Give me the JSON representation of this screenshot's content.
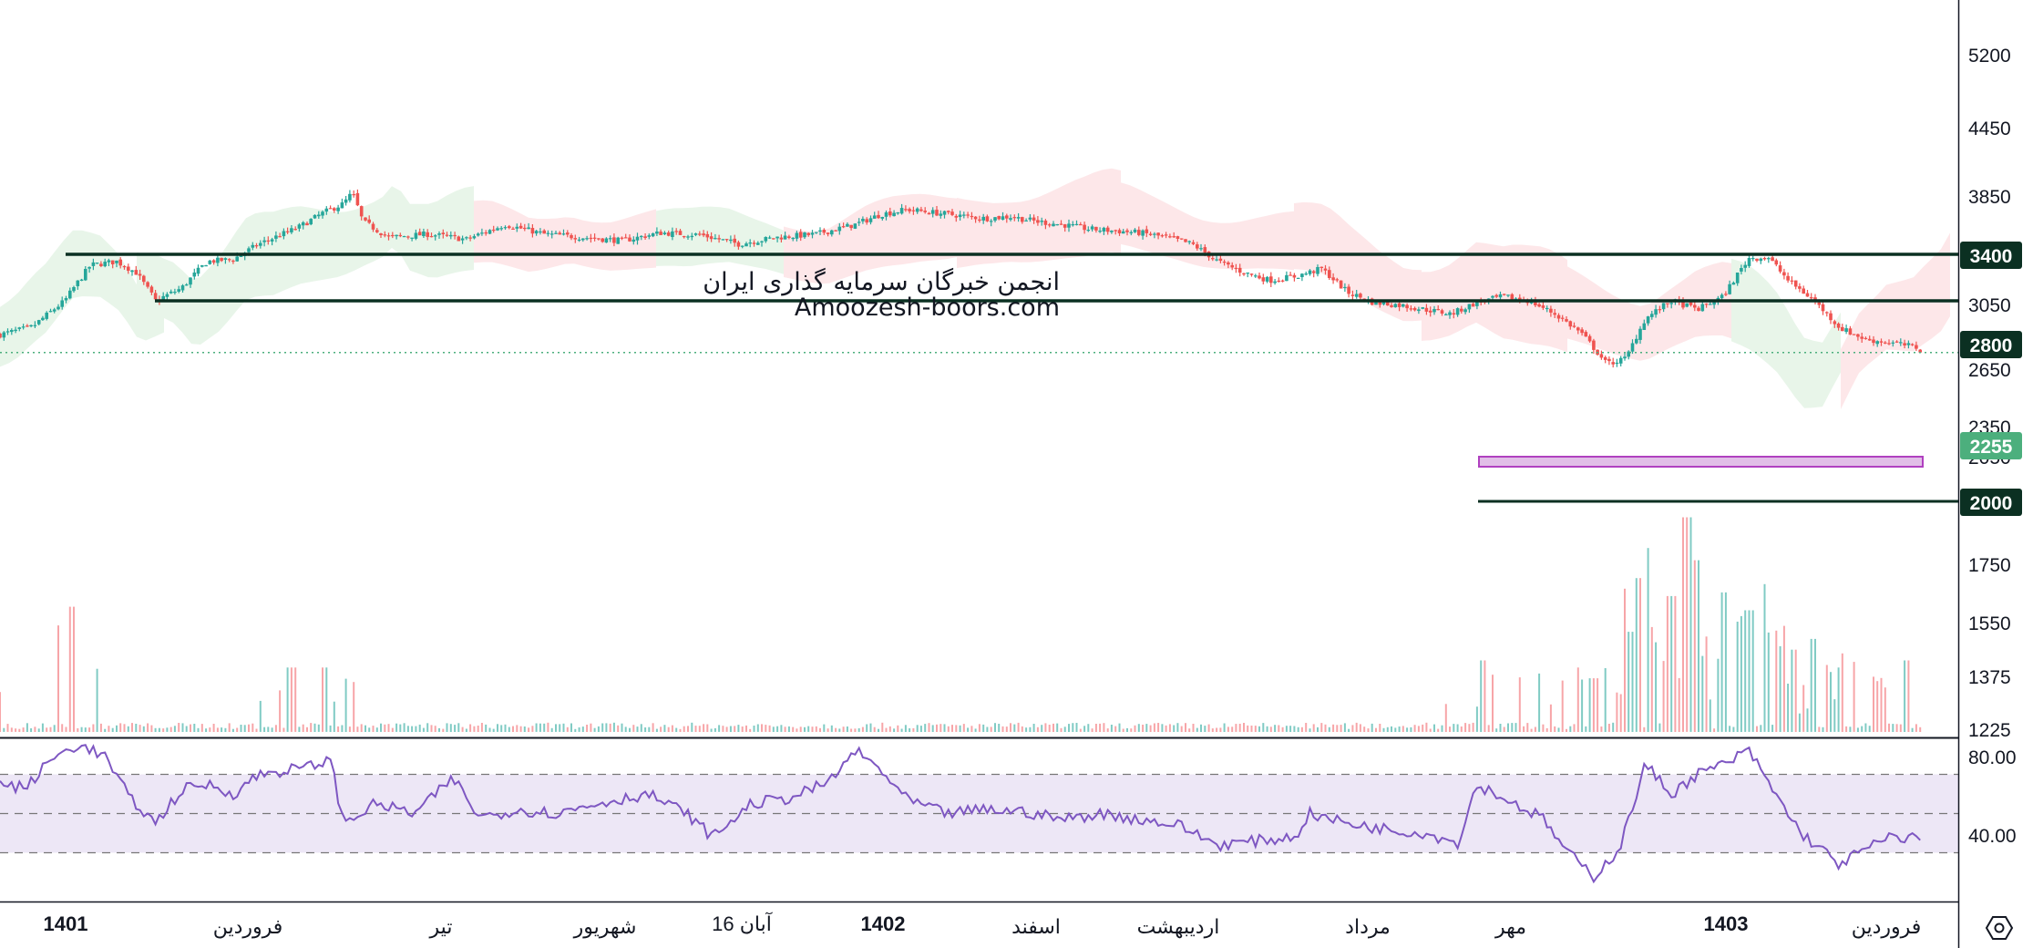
{
  "watermark": {
    "line1": "انجمن خبرگان سرمایه گذاری ایران",
    "line2": "Amoozesh-boors.com"
  },
  "price_axis": {
    "ticks": [
      "5200",
      "4450",
      "3850",
      "3400",
      "3050",
      "2800",
      "2650",
      "2350",
      "2255",
      "2050",
      "2000"
    ]
  },
  "volume_axis": {
    "ticks": [
      "1750",
      "1550",
      "1375",
      "1225"
    ]
  },
  "rsi_axis": {
    "ticks": [
      "80.00",
      "40.00"
    ]
  },
  "horizontal_levels": [
    {
      "value": 3400,
      "label": "3400",
      "color": "#0b3022"
    },
    {
      "value": 2800,
      "label": "2800",
      "color": "#0b3022"
    },
    {
      "value": 2000,
      "label": "2000",
      "color": "#0b3022"
    }
  ],
  "last_price": {
    "value": 2255,
    "label": "2255",
    "color": "#4caf7d"
  },
  "support_zone": {
    "from": 2185,
    "to": 2235,
    "color": "#e1bee7"
  },
  "time_axis": {
    "labels": [
      {
        "text": "1401",
        "bold": true
      },
      {
        "text": "فروردین",
        "bold": false
      },
      {
        "text": "تیر",
        "bold": false
      },
      {
        "text": "شهریور",
        "bold": false
      },
      {
        "text": "16 آبان",
        "bold": false
      },
      {
        "text": "1402",
        "bold": true
      },
      {
        "text": "اسفند",
        "bold": false
      },
      {
        "text": "اردیبهشت",
        "bold": false
      },
      {
        "text": "مرداد",
        "bold": false
      },
      {
        "text": "مهر",
        "bold": false
      },
      {
        "text": "1403",
        "bold": true
      },
      {
        "text": "فروردین",
        "bold": false
      }
    ]
  },
  "settings_icon": "hexagon-gear-icon",
  "colors": {
    "up": "#26a69a",
    "down": "#ef5350",
    "rsi_line": "#7e57c2",
    "rsi_band": "#ede7f6",
    "cloud_green": "#e8f5e9",
    "cloud_red": "#fde7e9"
  },
  "chart_data": [
    {
      "type": "candlestick",
      "ylim": [
        1900,
        5500
      ],
      "anchors": [
        [
          0,
          2430
        ],
        [
          25,
          2510
        ],
        [
          50,
          2800
        ],
        [
          70,
          3250
        ],
        [
          90,
          3300
        ],
        [
          105,
          3150
        ],
        [
          120,
          2800
        ],
        [
          140,
          2950
        ],
        [
          160,
          3300
        ],
        [
          180,
          3330
        ],
        [
          200,
          3550
        ],
        [
          230,
          3800
        ],
        [
          250,
          4050
        ],
        [
          265,
          4200
        ],
        [
          272,
          4400
        ],
        [
          280,
          3900
        ],
        [
          300,
          3650
        ],
        [
          330,
          3700
        ],
        [
          360,
          3620
        ],
        [
          390,
          3850
        ],
        [
          420,
          3700
        ],
        [
          450,
          3650
        ],
        [
          480,
          3600
        ],
        [
          510,
          3720
        ],
        [
          540,
          3690
        ],
        [
          570,
          3550
        ],
        [
          600,
          3650
        ],
        [
          630,
          3700
        ],
        [
          660,
          3850
        ],
        [
          680,
          4020
        ],
        [
          700,
          4100
        ],
        [
          720,
          4050
        ],
        [
          740,
          4000
        ],
        [
          760,
          3950
        ],
        [
          780,
          3980
        ],
        [
          800,
          3900
        ],
        [
          820,
          3850
        ],
        [
          840,
          3780
        ],
        [
          860,
          3750
        ],
        [
          880,
          3720
        ],
        [
          900,
          3650
        ],
        [
          920,
          3550
        ],
        [
          940,
          3300
        ],
        [
          960,
          3150
        ],
        [
          980,
          3050
        ],
        [
          1000,
          3100
        ],
        [
          1020,
          3200
        ],
        [
          1040,
          2900
        ],
        [
          1060,
          2780
        ],
        [
          1080,
          2750
        ],
        [
          1100,
          2700
        ],
        [
          1120,
          2650
        ],
        [
          1140,
          2780
        ],
        [
          1160,
          2850
        ],
        [
          1180,
          2800
        ],
        [
          1200,
          2650
        ],
        [
          1220,
          2450
        ],
        [
          1240,
          2150
        ],
        [
          1255,
          2200
        ],
        [
          1270,
          2600
        ],
        [
          1290,
          2800
        ],
        [
          1310,
          2700
        ],
        [
          1330,
          2850
        ],
        [
          1350,
          3350
        ],
        [
          1365,
          3350
        ],
        [
          1380,
          3050
        ],
        [
          1400,
          2800
        ],
        [
          1420,
          2500
        ],
        [
          1440,
          2380
        ],
        [
          1460,
          2350
        ],
        [
          1480,
          2300
        ],
        [
          1484,
          2255
        ]
      ],
      "levels": [
        3400,
        2800,
        2000
      ],
      "last": 2255
    },
    {
      "type": "bar",
      "name": "volume",
      "ylim": [
        1200,
        1900
      ],
      "spikes": [
        [
          55,
          1570
        ],
        [
          225,
          1400
        ],
        [
          250,
          1400
        ],
        [
          1145,
          1420
        ],
        [
          1230,
          1370
        ],
        [
          1260,
          1500
        ],
        [
          1265,
          1650
        ],
        [
          1290,
          1600
        ],
        [
          1302,
          1820
        ],
        [
          1310,
          1700
        ],
        [
          1330,
          1610
        ],
        [
          1350,
          1560
        ],
        [
          1385,
          1450
        ],
        [
          1400,
          1480
        ],
        [
          1420,
          1400
        ],
        [
          1472,
          1420
        ]
      ]
    },
    {
      "type": "line",
      "name": "RSI",
      "ylim": [
        10,
        90
      ],
      "bands": [
        30,
        50,
        70
      ],
      "anchors": [
        [
          0,
          65
        ],
        [
          20,
          63
        ],
        [
          40,
          78
        ],
        [
          60,
          85
        ],
        [
          80,
          80
        ],
        [
          100,
          58
        ],
        [
          120,
          45
        ],
        [
          140,
          62
        ],
        [
          160,
          65
        ],
        [
          180,
          60
        ],
        [
          200,
          70
        ],
        [
          220,
          72
        ],
        [
          240,
          74
        ],
        [
          255,
          78
        ],
        [
          265,
          45
        ],
        [
          290,
          55
        ],
        [
          320,
          50
        ],
        [
          350,
          68
        ],
        [
          370,
          48
        ],
        [
          400,
          52
        ],
        [
          430,
          50
        ],
        [
          460,
          55
        ],
        [
          500,
          60
        ],
        [
          530,
          50
        ],
        [
          550,
          38
        ],
        [
          580,
          55
        ],
        [
          610,
          58
        ],
        [
          640,
          66
        ],
        [
          660,
          82
        ],
        [
          680,
          72
        ],
        [
          700,
          57
        ],
        [
          730,
          50
        ],
        [
          760,
          52
        ],
        [
          790,
          51
        ],
        [
          820,
          47
        ],
        [
          850,
          50
        ],
        [
          880,
          47
        ],
        [
          910,
          44
        ],
        [
          940,
          34
        ],
        [
          970,
          36
        ],
        [
          1000,
          38
        ],
        [
          1010,
          50
        ],
        [
          1040,
          45
        ],
        [
          1070,
          42
        ],
        [
          1100,
          40
        ],
        [
          1125,
          35
        ],
        [
          1140,
          65
        ],
        [
          1160,
          58
        ],
        [
          1190,
          48
        ],
        [
          1210,
          30
        ],
        [
          1230,
          18
        ],
        [
          1250,
          32
        ],
        [
          1270,
          75
        ],
        [
          1290,
          60
        ],
        [
          1310,
          70
        ],
        [
          1330,
          75
        ],
        [
          1350,
          82
        ],
        [
          1370,
          60
        ],
        [
          1390,
          40
        ],
        [
          1420,
          24
        ],
        [
          1440,
          32
        ],
        [
          1460,
          38
        ],
        [
          1480,
          38
        ]
      ]
    }
  ]
}
